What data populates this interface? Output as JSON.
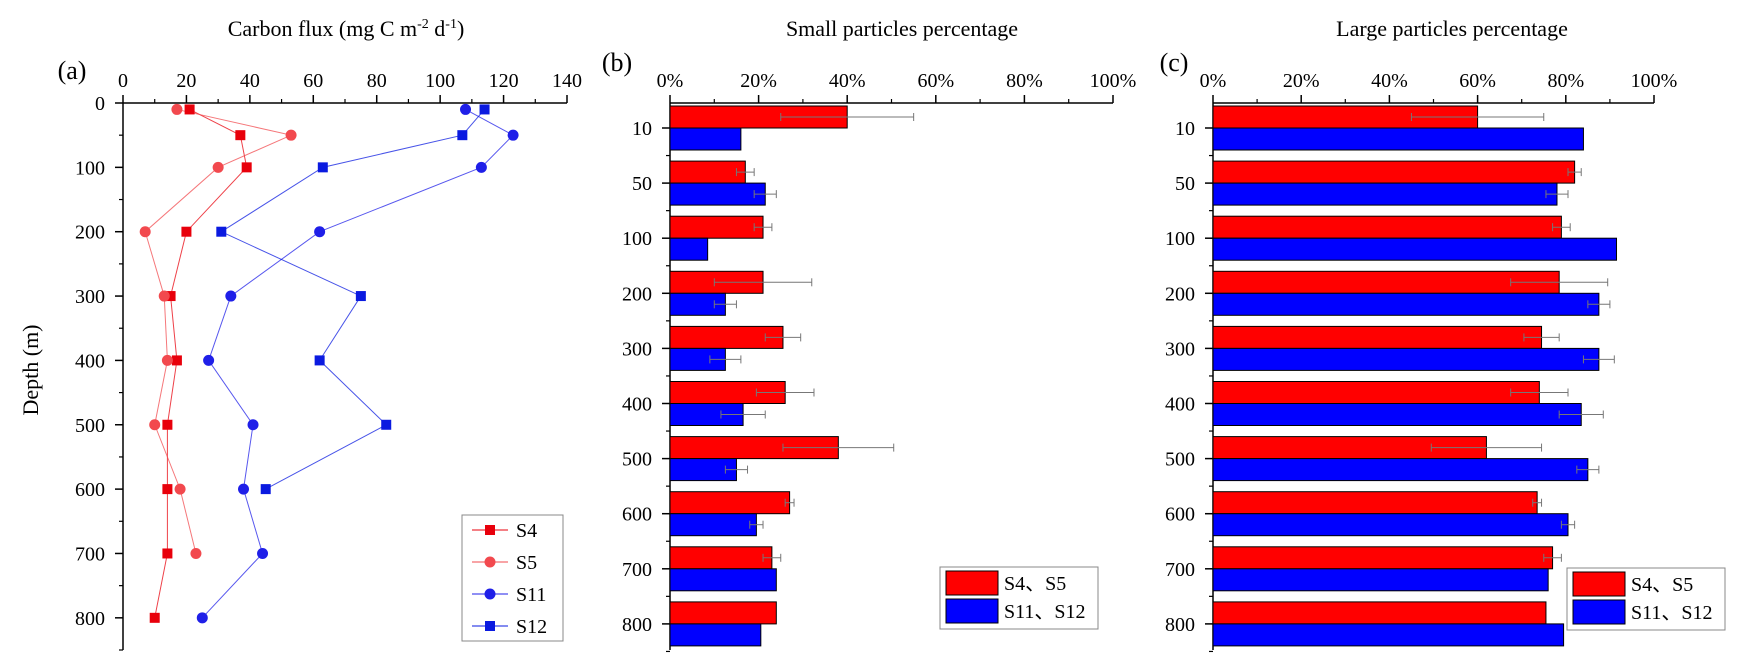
{
  "chart_data": [
    {
      "panel": "(a)",
      "type": "scatter",
      "title": "Carbon flux (mg C m",
      "title_sup1": "-2",
      "title_mid": " d",
      "title_sup2": "-1",
      "title_end": ")",
      "ylabel": "Depth (m)",
      "xlim": [
        0,
        140
      ],
      "ylim": [
        0,
        850
      ],
      "xticks": [
        "0",
        "20",
        "40",
        "60",
        "80",
        "100",
        "120",
        "140"
      ],
      "yticks": [
        "0",
        "100",
        "200",
        "300",
        "400",
        "500",
        "600",
        "700",
        "800"
      ],
      "legend_position": "bottom-right",
      "series": [
        {
          "name": "S4",
          "color": "#e8000b",
          "marker": "square",
          "points": [
            [
              21,
              10
            ],
            [
              37,
              50
            ],
            [
              39,
              100
            ],
            [
              20,
              200
            ],
            [
              15,
              300
            ],
            [
              17,
              400
            ],
            [
              14,
              500
            ],
            [
              14,
              600
            ],
            [
              14,
              700
            ],
            [
              10,
              800
            ]
          ]
        },
        {
          "name": "S5",
          "color": "#f2494e",
          "marker": "circle",
          "points": [
            [
              17,
              10
            ],
            [
              53,
              50
            ],
            [
              30,
              100
            ],
            [
              7,
              200
            ],
            [
              13,
              300
            ],
            [
              14,
              400
            ],
            [
              10,
              500
            ],
            [
              18,
              600
            ],
            [
              23,
              700
            ]
          ]
        },
        {
          "name": "S11",
          "color": "#1f1fe8",
          "marker": "circle",
          "points": [
            [
              108,
              10
            ],
            [
              123,
              50
            ],
            [
              113,
              100
            ],
            [
              62,
              200
            ],
            [
              34,
              300
            ],
            [
              27,
              400
            ],
            [
              41,
              500
            ],
            [
              38,
              600
            ],
            [
              44,
              700
            ],
            [
              25,
              800
            ]
          ]
        },
        {
          "name": "S12",
          "color": "#0a1ae0",
          "marker": "square",
          "points": [
            [
              114,
              10
            ],
            [
              107,
              50
            ],
            [
              63,
              100
            ],
            [
              31,
              200
            ],
            [
              75,
              300
            ],
            [
              62,
              400
            ],
            [
              83,
              500
            ],
            [
              45,
              600
            ]
          ]
        }
      ]
    },
    {
      "panel": "(b)",
      "type": "bar",
      "orientation": "horizontal",
      "title": "Small particles percentage",
      "categories": [
        "10",
        "50",
        "100",
        "200",
        "300",
        "400",
        "500",
        "600",
        "700",
        "800"
      ],
      "xlim": [
        0,
        100
      ],
      "xticks": [
        "0%",
        "20%",
        "40%",
        "60%",
        "80%",
        "100%"
      ],
      "legend_position": "bottom-right",
      "series": [
        {
          "name": "S4、S5",
          "color": "#ff0000",
          "values": [
            40,
            17,
            21,
            21,
            25.5,
            26,
            38,
            27,
            23,
            24
          ],
          "errors": [
            15,
            2,
            2,
            11,
            4,
            6.5,
            12.5,
            1,
            2,
            0
          ]
        },
        {
          "name": "S11、S12",
          "color": "#0000ff",
          "values": [
            16,
            21.5,
            8.5,
            12.5,
            12.5,
            16.5,
            15,
            19.5,
            24,
            20.5
          ],
          "errors": [
            0,
            2.5,
            0,
            2.5,
            3.5,
            5,
            2.5,
            1.5,
            0,
            0
          ]
        }
      ]
    },
    {
      "panel": "(c)",
      "type": "bar",
      "orientation": "horizontal",
      "title": "Large particles percentage",
      "categories": [
        "10",
        "50",
        "100",
        "200",
        "300",
        "400",
        "500",
        "600",
        "700",
        "800"
      ],
      "xlim": [
        0,
        100
      ],
      "xticks": [
        "0%",
        "20%",
        "40%",
        "60%",
        "80%",
        "100%"
      ],
      "legend_position": "bottom-right",
      "series": [
        {
          "name": "S4、S5",
          "color": "#ff0000",
          "values": [
            60,
            82,
            79,
            78.5,
            74.5,
            74,
            62,
            73.5,
            77,
            75.5
          ],
          "errors": [
            15,
            1.5,
            2,
            11,
            4,
            6.5,
            12.5,
            1,
            2,
            0
          ]
        },
        {
          "name": "S11、S12",
          "color": "#0000ff",
          "values": [
            84,
            78,
            91.5,
            87.5,
            87.5,
            83.5,
            85,
            80.5,
            76,
            79.5
          ],
          "errors": [
            0,
            2.5,
            0,
            2.5,
            3.5,
            5,
            2.5,
            1.5,
            0,
            0
          ]
        }
      ]
    }
  ]
}
